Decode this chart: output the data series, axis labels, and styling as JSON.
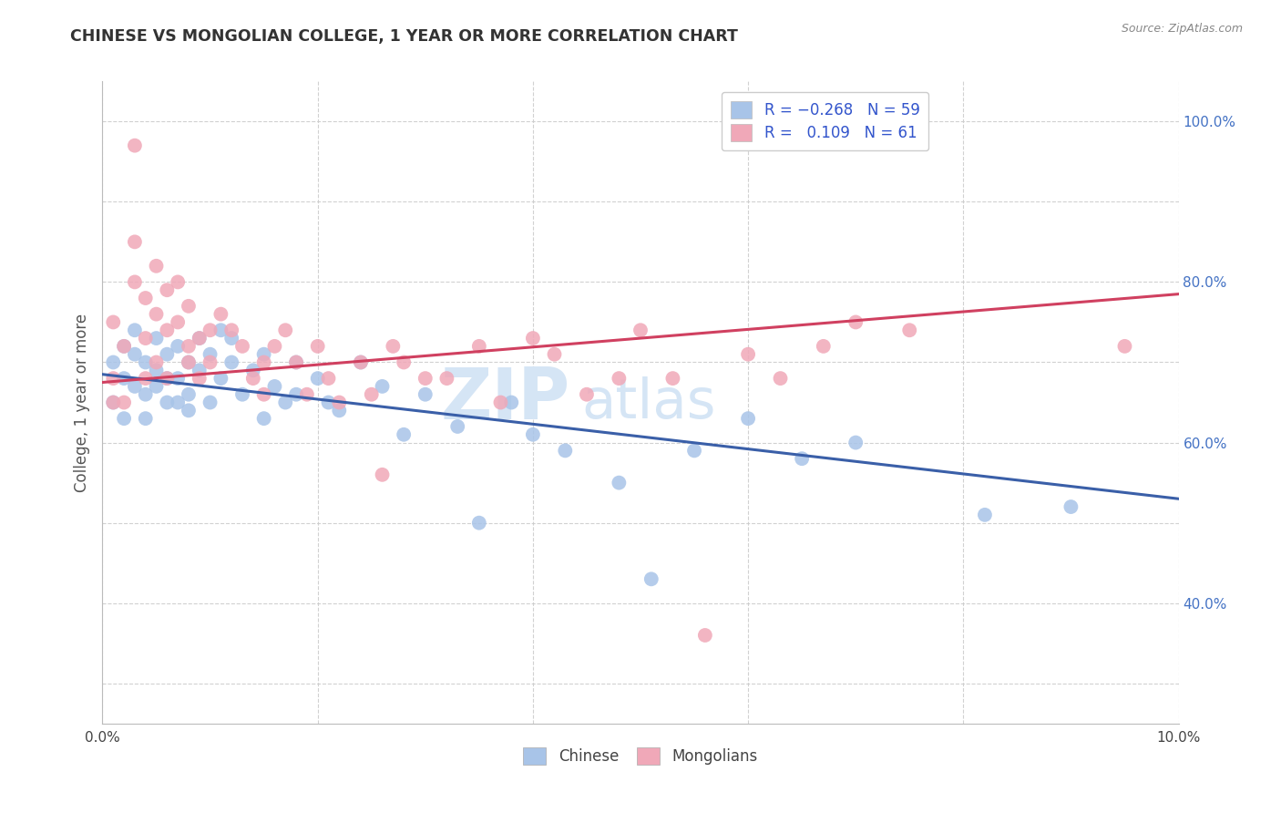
{
  "title": "CHINESE VS MONGOLIAN COLLEGE, 1 YEAR OR MORE CORRELATION CHART",
  "source": "Source: ZipAtlas.com",
  "ylabel": "College, 1 year or more",
  "xlim": [
    0.0,
    0.1
  ],
  "ylim": [
    0.25,
    1.05
  ],
  "xticks": [
    0.0,
    0.02,
    0.04,
    0.06,
    0.08,
    0.1
  ],
  "xtick_labels": [
    "0.0%",
    "",
    "",
    "",
    "",
    "10.0%"
  ],
  "right_yticks": [
    0.4,
    0.6,
    0.8,
    1.0
  ],
  "right_ytick_labels": [
    "40.0%",
    "60.0%",
    "80.0%",
    "100.0%"
  ],
  "chinese_R": -0.268,
  "chinese_N": 59,
  "mongolian_R": 0.109,
  "mongolian_N": 61,
  "chinese_color": "#a8c4e8",
  "mongolian_color": "#f0a8b8",
  "chinese_line_color": "#3a5fa8",
  "mongolian_line_color": "#d04060",
  "background_color": "#ffffff",
  "grid_color": "#cccccc",
  "right_ytick_color": "#4472c4",
  "legend_text_color": "#3355cc",
  "title_color": "#333333",
  "source_color": "#888888",
  "watermark_color": "#d5e5f5",
  "ylabel_color": "#555555",
  "bottom_legend_labels": [
    "Chinese",
    "Mongolians"
  ],
  "bottom_legend_colors": [
    "#a8c4e8",
    "#f0a8b8"
  ],
  "chinese_x": [
    0.001,
    0.001,
    0.002,
    0.002,
    0.002,
    0.003,
    0.003,
    0.003,
    0.004,
    0.004,
    0.004,
    0.005,
    0.005,
    0.005,
    0.006,
    0.006,
    0.006,
    0.007,
    0.007,
    0.007,
    0.008,
    0.008,
    0.008,
    0.009,
    0.009,
    0.01,
    0.01,
    0.011,
    0.011,
    0.012,
    0.012,
    0.013,
    0.014,
    0.015,
    0.015,
    0.016,
    0.017,
    0.018,
    0.018,
    0.02,
    0.021,
    0.022,
    0.024,
    0.026,
    0.028,
    0.03,
    0.033,
    0.035,
    0.038,
    0.04,
    0.043,
    0.048,
    0.051,
    0.055,
    0.06,
    0.065,
    0.07,
    0.082,
    0.09
  ],
  "chinese_y": [
    0.7,
    0.65,
    0.68,
    0.63,
    0.72,
    0.67,
    0.71,
    0.74,
    0.66,
    0.7,
    0.63,
    0.69,
    0.73,
    0.67,
    0.71,
    0.65,
    0.68,
    0.72,
    0.68,
    0.65,
    0.7,
    0.64,
    0.66,
    0.73,
    0.69,
    0.71,
    0.65,
    0.74,
    0.68,
    0.7,
    0.73,
    0.66,
    0.69,
    0.63,
    0.71,
    0.67,
    0.65,
    0.7,
    0.66,
    0.68,
    0.65,
    0.64,
    0.7,
    0.67,
    0.61,
    0.66,
    0.62,
    0.5,
    0.65,
    0.61,
    0.59,
    0.55,
    0.43,
    0.59,
    0.63,
    0.58,
    0.6,
    0.51,
    0.52
  ],
  "mongolian_x": [
    0.001,
    0.001,
    0.001,
    0.002,
    0.002,
    0.003,
    0.003,
    0.003,
    0.004,
    0.004,
    0.004,
    0.005,
    0.005,
    0.005,
    0.006,
    0.006,
    0.006,
    0.007,
    0.007,
    0.008,
    0.008,
    0.008,
    0.009,
    0.009,
    0.01,
    0.01,
    0.011,
    0.012,
    0.013,
    0.014,
    0.015,
    0.015,
    0.016,
    0.017,
    0.018,
    0.019,
    0.02,
    0.021,
    0.022,
    0.024,
    0.025,
    0.026,
    0.027,
    0.028,
    0.03,
    0.032,
    0.035,
    0.037,
    0.04,
    0.042,
    0.045,
    0.048,
    0.05,
    0.053,
    0.056,
    0.06,
    0.063,
    0.067,
    0.07,
    0.075,
    0.095
  ],
  "mongolian_y": [
    0.75,
    0.68,
    0.65,
    0.72,
    0.65,
    0.97,
    0.85,
    0.8,
    0.78,
    0.73,
    0.68,
    0.82,
    0.76,
    0.7,
    0.79,
    0.74,
    0.68,
    0.8,
    0.75,
    0.72,
    0.77,
    0.7,
    0.73,
    0.68,
    0.74,
    0.7,
    0.76,
    0.74,
    0.72,
    0.68,
    0.7,
    0.66,
    0.72,
    0.74,
    0.7,
    0.66,
    0.72,
    0.68,
    0.65,
    0.7,
    0.66,
    0.56,
    0.72,
    0.7,
    0.68,
    0.68,
    0.72,
    0.65,
    0.73,
    0.71,
    0.66,
    0.68,
    0.74,
    0.68,
    0.36,
    0.71,
    0.68,
    0.72,
    0.75,
    0.74,
    0.72
  ]
}
